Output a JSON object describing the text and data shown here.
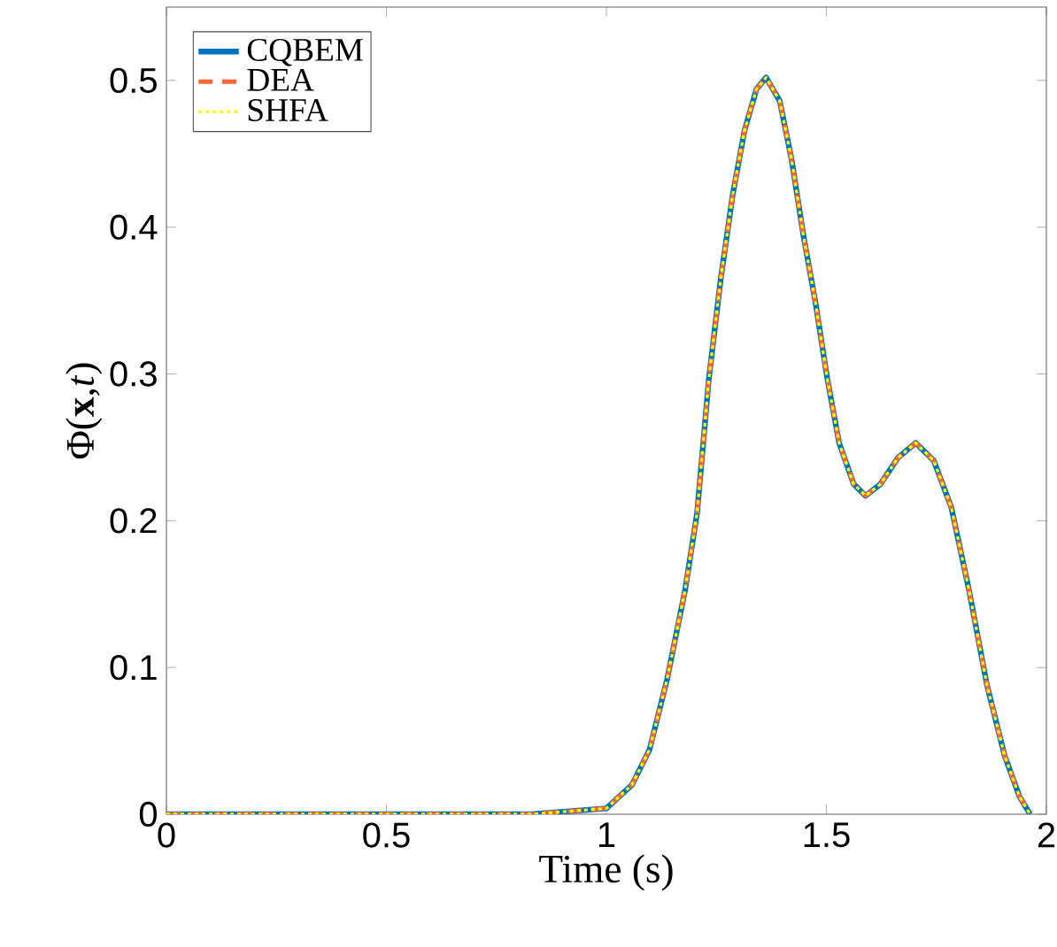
{
  "chart_data": {
    "type": "line",
    "xlabel": "Time (s)",
    "ylabel": "Φ(**x**,*t*)",
    "xlim": [
      0,
      2
    ],
    "ylim": [
      0,
      0.55
    ],
    "xticks": [
      0,
      0.5,
      1,
      1.5,
      2
    ],
    "yticks": [
      0,
      0.1,
      0.2,
      0.3,
      0.4,
      0.5
    ],
    "x": [
      0,
      0.5,
      0.83,
      1.0,
      1.058,
      1.098,
      1.138,
      1.179,
      1.206,
      1.233,
      1.26,
      1.287,
      1.314,
      1.341,
      1.363,
      1.394,
      1.421,
      1.448,
      1.475,
      1.502,
      1.529,
      1.562,
      1.589,
      1.623,
      1.663,
      1.703,
      1.744,
      1.784,
      1.824,
      1.865,
      1.905,
      1.939,
      1.963
    ],
    "legend": "top left",
    "grid": false,
    "series": [
      {
        "name": "CQBEM",
        "color": "#0072bd",
        "line_style": "solid",
        "values": [
          0,
          0,
          0,
          0.004,
          0.02,
          0.044,
          0.092,
          0.153,
          0.205,
          0.297,
          0.365,
          0.422,
          0.466,
          0.494,
          0.502,
          0.486,
          0.446,
          0.394,
          0.349,
          0.297,
          0.253,
          0.225,
          0.217,
          0.225,
          0.243,
          0.253,
          0.241,
          0.209,
          0.153,
          0.088,
          0.04,
          0.012,
          0
        ]
      },
      {
        "name": "DEA",
        "color": "#ff6633",
        "line_style": "dashed",
        "values": [
          0,
          0,
          0,
          0.004,
          0.02,
          0.044,
          0.092,
          0.153,
          0.205,
          0.297,
          0.365,
          0.422,
          0.466,
          0.494,
          0.502,
          0.486,
          0.446,
          0.394,
          0.349,
          0.297,
          0.253,
          0.225,
          0.217,
          0.225,
          0.243,
          0.253,
          0.241,
          0.209,
          0.153,
          0.088,
          0.04,
          0.012,
          0
        ]
      },
      {
        "name": "SHFA",
        "color": "#ffff00",
        "line_style": "dotted",
        "values": [
          0,
          0,
          0,
          0.004,
          0.02,
          0.044,
          0.092,
          0.153,
          0.205,
          0.297,
          0.365,
          0.422,
          0.466,
          0.494,
          0.502,
          0.486,
          0.446,
          0.394,
          0.349,
          0.297,
          0.253,
          0.225,
          0.217,
          0.225,
          0.243,
          0.253,
          0.241,
          0.209,
          0.153,
          0.088,
          0.04,
          0.012,
          0
        ]
      }
    ]
  }
}
